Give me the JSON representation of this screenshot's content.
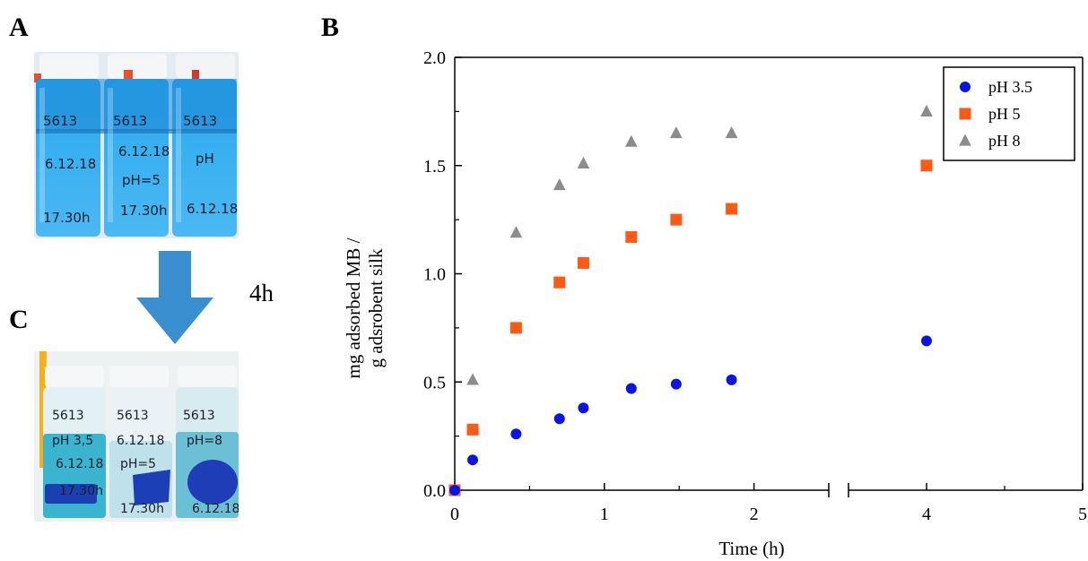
{
  "panels": {
    "a": "A",
    "b": "B",
    "c": "C"
  },
  "duration_label": "4h",
  "photo_a": {
    "vials": [
      {
        "lines": [
          "5613",
          "6.12.18",
          "17.30h"
        ]
      },
      {
        "lines": [
          "5613",
          "6.12.18",
          "pH=5",
          "17.30h"
        ]
      },
      {
        "lines": [
          "5613",
          "pH",
          "6.12.18"
        ]
      }
    ]
  },
  "photo_c": {
    "vials": [
      {
        "lines": [
          "5613",
          "pH 3,5",
          "6.12.18",
          "17.30h"
        ]
      },
      {
        "lines": [
          "5613",
          "6.12.18",
          "pH=5",
          "17.30h"
        ]
      },
      {
        "lines": [
          "5613",
          "pH=8",
          "6.12.18"
        ]
      }
    ]
  },
  "chart_data": {
    "type": "scatter",
    "xlabel": "Time (h)",
    "ylabel_lines": [
      "mg adsorbed MB /",
      "g adsrobent silk"
    ],
    "xlim": [
      0,
      5
    ],
    "ylim": [
      0,
      2.0
    ],
    "axis_break": [
      2.5,
      3.5
    ],
    "x_ticks": [
      0,
      1,
      2,
      4,
      5
    ],
    "y_ticks": [
      "0.0",
      "0.5",
      "1.0",
      "1.5",
      "2.0"
    ],
    "legend_position": "top-right",
    "series": [
      {
        "name": "pH 3.5",
        "marker": "circle",
        "color": "#0a14e6",
        "x": [
          0,
          0.12,
          0.41,
          0.7,
          0.86,
          1.18,
          1.48,
          1.85,
          4
        ],
        "y": [
          0,
          0.14,
          0.26,
          0.33,
          0.38,
          0.47,
          0.49,
          0.51,
          0.69
        ]
      },
      {
        "name": "pH 5",
        "marker": "square",
        "color": "#ff5a14",
        "x": [
          0,
          0.12,
          0.41,
          0.7,
          0.86,
          1.18,
          1.48,
          1.85,
          4
        ],
        "y": [
          0,
          0.28,
          0.75,
          0.96,
          1.05,
          1.17,
          1.25,
          1.3,
          1.5
        ]
      },
      {
        "name": "pH 8",
        "marker": "triangle",
        "color": "#8c8c8c",
        "x": [
          0,
          0.12,
          0.41,
          0.7,
          0.86,
          1.18,
          1.48,
          1.85,
          4
        ],
        "y": [
          0,
          0.51,
          1.19,
          1.41,
          1.51,
          1.61,
          1.65,
          1.65,
          1.75
        ]
      }
    ]
  }
}
